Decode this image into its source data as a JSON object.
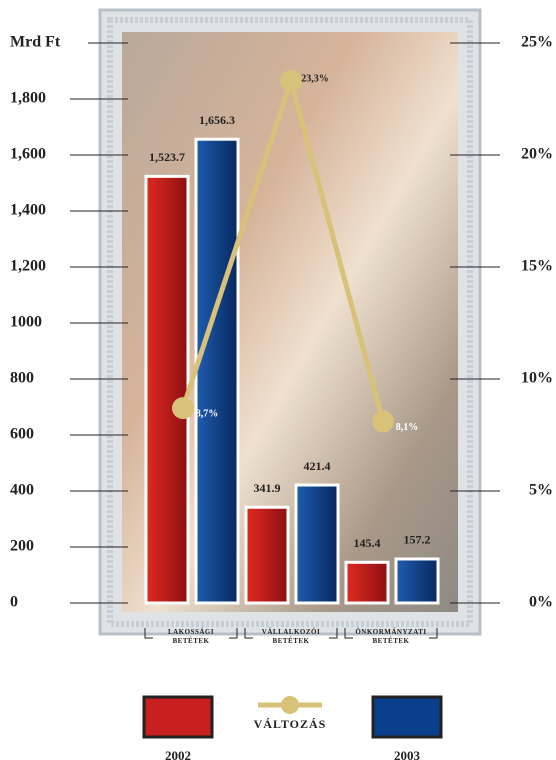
{
  "chart_data": {
    "type": "bar",
    "y_label": "Mrd Ft",
    "categories": [
      "LAKOSSÁGI BETÉTEK",
      "VÁLLALKOZÓI BETÉTEK",
      "ÖNKORMÁNYZATI BETÉTEK"
    ],
    "series": [
      {
        "name": "2002",
        "color": "#c8201e",
        "values": [
          1523.7,
          341.9,
          145.4
        ],
        "value_labels": [
          "1,523.7",
          "341.9",
          "145.4"
        ]
      },
      {
        "name": "2003",
        "color": "#0a3f8c",
        "values": [
          1656.3,
          421.4,
          157.2
        ],
        "value_labels": [
          "1,656.3",
          "421.4",
          "157.2"
        ]
      },
      {
        "name": "VÁLTOZÁS",
        "type": "line",
        "axis": "y2",
        "color": "#d8c27a",
        "values": [
          8.7,
          23.3,
          8.1
        ],
        "value_labels": [
          "8,7%",
          "23,3%",
          "8,1%"
        ]
      }
    ],
    "ylim": [
      0,
      2000
    ],
    "yticks": [
      0,
      200,
      400,
      600,
      800,
      1000,
      {
        "value": 1200,
        "label": "1,200"
      },
      {
        "value": 1400,
        "label": "1,400"
      },
      {
        "value": 1600,
        "label": "1,600"
      },
      {
        "value": 1800,
        "label": "1,800"
      }
    ],
    "y2lim": [
      0,
      25
    ],
    "y2ticks": [
      {
        "value": 0,
        "label": "0%"
      },
      {
        "value": 5,
        "label": "5%"
      },
      {
        "value": 10,
        "label": "10%"
      },
      {
        "value": 15,
        "label": "15%"
      },
      {
        "value": 20,
        "label": "20%"
      },
      {
        "value": 25,
        "label": "25%"
      }
    ]
  }
}
